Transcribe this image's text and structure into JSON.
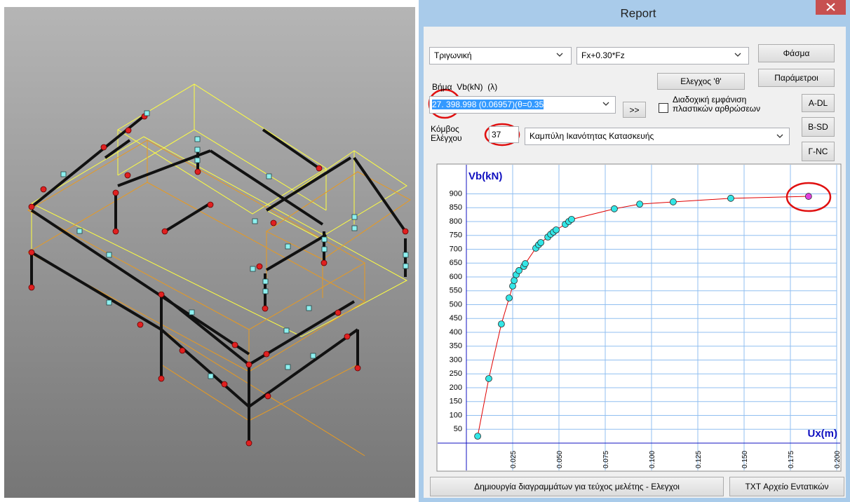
{
  "window": {
    "title": "Report"
  },
  "controls": {
    "load_pattern": "Τριγωνική",
    "load_combination": "Fx+0.30*Fz",
    "spectrum_button": "Φάσμα",
    "theta_check_button": "Ελεγχος 'θ'",
    "parameters_button": "Παράμετροι",
    "step_label": "Βήμα  Vb(kN)  (λ)",
    "step_value": "27. 398.998 (0.06957)(θ=0.35",
    "next_button": ">>",
    "sequential_hinges_label": [
      "Διαδοχική εμφάνιση",
      "πλαστικών αρθρώσεων"
    ],
    "a_dl_button": "A-DL",
    "b_sd_button": "B-SD",
    "g_nc_button": "Γ-NC",
    "control_node_label": [
      "Κόμβος",
      "Ελέγχου"
    ],
    "control_node_value": "37",
    "curve_type": "Καμπύλη Ικανότητας Κατασκευής",
    "create_diagrams_button": "Δημιουργία διαγραμμάτων για τεύχος μελέτης - Ελεγχοι",
    "txt_button": "TXT Αρχείο Εντατικών"
  },
  "chart_data": {
    "type": "line",
    "y_label": "Vb(kN)",
    "x_label": "Ux(m)",
    "x": [
      0.0061,
      0.0121,
      0.0189,
      0.0231,
      0.025,
      0.0258,
      0.0269,
      0.0284,
      0.031,
      0.0318,
      0.0375,
      0.039,
      0.0402,
      0.044,
      0.0455,
      0.047,
      0.0485,
      0.0534,
      0.0553,
      0.0568,
      0.0799,
      0.0936,
      0.1117,
      0.1428,
      0.1848
    ],
    "values": [
      25,
      233,
      430,
      524,
      567,
      587,
      608,
      623,
      638,
      648,
      704,
      716,
      724,
      744,
      754,
      762,
      770,
      790,
      800,
      808,
      846,
      863,
      871,
      884,
      891
    ],
    "color": "#e00000",
    "marker_color": "#33e6e6",
    "last_marker_color": "#e040e0",
    "grid_color": "#90bff0",
    "axis_color": "#1010c0",
    "xlim": [
      0,
      0.2
    ],
    "ylim": [
      0,
      1000
    ],
    "xticks": [
      0.025,
      {
        "value": 0.05,
        "label": "0.050"
      },
      0.075,
      {
        "value": 0.1,
        "label": "0.100"
      },
      0.125,
      {
        "value": 0.15,
        "label": "0.150"
      },
      0.175,
      {
        "value": 0.2,
        "label": "0.200"
      }
    ],
    "yticks": [
      50,
      100,
      150,
      200,
      250,
      300,
      350,
      400,
      450,
      500,
      550,
      600,
      650,
      700,
      750,
      800,
      850,
      900
    ],
    "grid": true
  }
}
